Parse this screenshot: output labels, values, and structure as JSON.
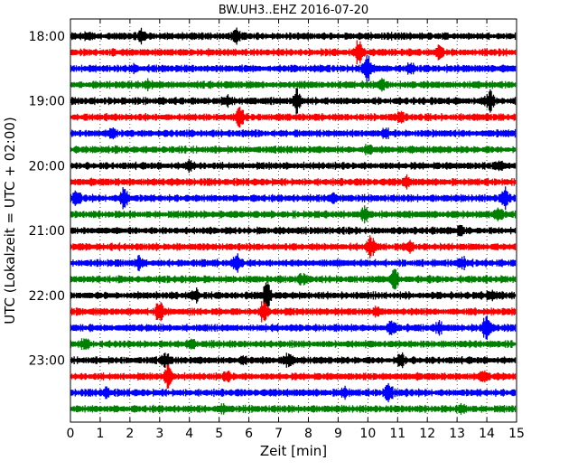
{
  "chart_data": {
    "type": "line",
    "title": "BW.UH3..EHZ 2016-07-20",
    "xlabel": "Zeit  [min]",
    "ylabel": "UTC (Lokalzeit = UTC + 02:00)",
    "xlim": [
      0,
      15
    ],
    "x_ticks": [
      "0",
      "1",
      "2",
      "3",
      "4",
      "5",
      "6",
      "7",
      "8",
      "9",
      "10",
      "11",
      "12",
      "13",
      "14",
      "15"
    ],
    "y_ticks": [
      "18:00",
      "19:00",
      "20:00",
      "21:00",
      "22:00",
      "23:00"
    ],
    "grid": "vertical dotted",
    "trace_colors": [
      "#000000",
      "#ff0000",
      "#0000ff",
      "#008000"
    ],
    "series": [
      {
        "start": "18:00",
        "events": [
          [
            2.4,
            0.4
          ],
          [
            5.6,
            0.5
          ],
          [
            0.6,
            0.2
          ]
        ]
      },
      {
        "start": "18:15",
        "events": [
          [
            9.7,
            1.0
          ],
          [
            12.4,
            0.5
          ]
        ]
      },
      {
        "start": "18:30",
        "events": [
          [
            10.0,
            0.9
          ],
          [
            11.4,
            0.4
          ],
          [
            2.1,
            0.2
          ]
        ]
      },
      {
        "start": "18:45",
        "events": [
          [
            10.5,
            0.3
          ],
          [
            2.6,
            0.2
          ]
        ]
      },
      {
        "start": "19:00",
        "events": [
          [
            7.6,
            0.8
          ],
          [
            14.1,
            0.7
          ],
          [
            5.3,
            0.3
          ]
        ]
      },
      {
        "start": "19:15",
        "events": [
          [
            5.7,
            0.7
          ],
          [
            11.1,
            0.3
          ]
        ]
      },
      {
        "start": "19:30",
        "events": [
          [
            1.4,
            0.3
          ],
          [
            10.6,
            0.3
          ]
        ]
      },
      {
        "start": "19:45",
        "events": [
          [
            10.0,
            0.3
          ]
        ]
      },
      {
        "start": "20:00",
        "events": [
          [
            4.0,
            0.4
          ],
          [
            14.4,
            0.3
          ]
        ]
      },
      {
        "start": "20:15",
        "events": [
          [
            11.3,
            0.3
          ]
        ]
      },
      {
        "start": "20:30",
        "events": [
          [
            1.8,
            0.8
          ],
          [
            8.8,
            0.4
          ],
          [
            14.6,
            0.8
          ],
          [
            0.2,
            0.4
          ]
        ]
      },
      {
        "start": "20:45",
        "events": [
          [
            9.9,
            0.6
          ],
          [
            14.4,
            0.4
          ]
        ]
      },
      {
        "start": "21:00",
        "events": [
          [
            13.1,
            0.3
          ]
        ]
      },
      {
        "start": "21:15",
        "events": [
          [
            10.1,
            0.7
          ],
          [
            11.4,
            0.4
          ]
        ]
      },
      {
        "start": "21:30",
        "events": [
          [
            2.3,
            0.4
          ],
          [
            5.6,
            0.5
          ],
          [
            13.2,
            0.3
          ]
        ]
      },
      {
        "start": "21:45",
        "events": [
          [
            10.9,
            0.7
          ],
          [
            7.8,
            0.3
          ]
        ]
      },
      {
        "start": "22:00",
        "events": [
          [
            6.6,
            1.0
          ],
          [
            4.2,
            0.4
          ],
          [
            14.1,
            0.3
          ]
        ]
      },
      {
        "start": "22:15",
        "events": [
          [
            3.0,
            0.8
          ],
          [
            6.5,
            0.8
          ],
          [
            10.3,
            0.3
          ]
        ]
      },
      {
        "start": "22:30",
        "events": [
          [
            10.8,
            0.6
          ],
          [
            14.0,
            1.0
          ],
          [
            12.4,
            0.3
          ]
        ]
      },
      {
        "start": "22:45",
        "events": [
          [
            0.5,
            0.5
          ],
          [
            4.1,
            0.3
          ]
        ]
      },
      {
        "start": "23:00",
        "events": [
          [
            3.2,
            0.4
          ],
          [
            11.1,
            0.5
          ],
          [
            7.3,
            0.4
          ],
          [
            5.8,
            0.3
          ]
        ]
      },
      {
        "start": "23:15",
        "events": [
          [
            3.3,
            0.8
          ],
          [
            5.3,
            0.3
          ],
          [
            13.9,
            0.3
          ]
        ]
      },
      {
        "start": "23:30",
        "events": [
          [
            10.7,
            0.7
          ],
          [
            1.2,
            0.3
          ],
          [
            9.2,
            0.3
          ]
        ]
      },
      {
        "start": "23:45",
        "events": [
          [
            13.2,
            0.3
          ],
          [
            5.1,
            0.2
          ]
        ]
      }
    ]
  }
}
